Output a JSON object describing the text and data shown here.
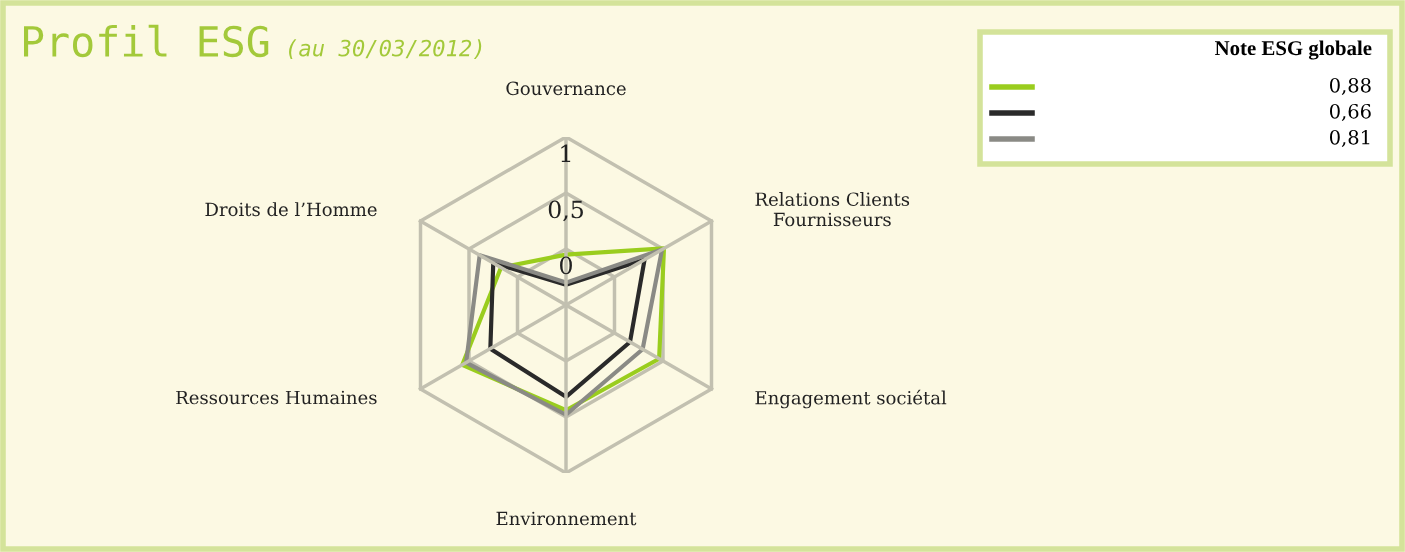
{
  "chart_data": {
    "type": "radar",
    "title": "Profil ESG",
    "subtitle": "(au 30/03/2012)",
    "legend_title": "Note ESG globale",
    "categories": [
      "Gouvernance",
      "Relations Clients\nFournisseurs",
      "Engagement sociétal",
      "Environnement",
      "Ressources Humaines",
      "Droits de l’Homme"
    ],
    "ylim": [
      -0.5,
      1
    ],
    "yticks": [
      {
        "value": 0,
        "label": "0"
      },
      {
        "value": 0.5,
        "label": "0,5"
      },
      {
        "value": 1,
        "label": "1"
      }
    ],
    "grid": true,
    "series": [
      {
        "color": "#9acd1e",
        "values": [
          -0.05,
          0.51,
          0.46,
          0.44,
          0.57,
          0.17
        ]
      },
      {
        "color": "#2a2a2a",
        "values": [
          -0.32,
          0.31,
          0.16,
          0.32,
          0.28,
          0.25
        ]
      },
      {
        "color": "#8a8a85",
        "values": [
          -0.3,
          0.49,
          0.29,
          0.48,
          0.53,
          0.39
        ]
      }
    ],
    "annotations": [
      "0,88",
      "0,66",
      "0,81"
    ]
  }
}
